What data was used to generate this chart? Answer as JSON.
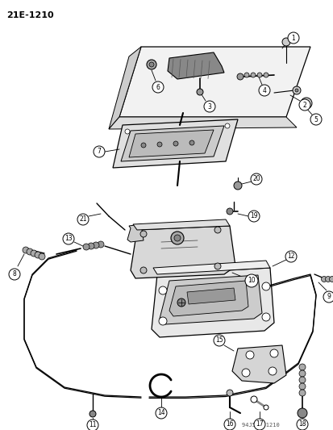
{
  "title": "21E-1210",
  "watermark": "94J53  1210",
  "bg_color": "#ffffff",
  "fg_color": "#000000",
  "fig_width": 4.14,
  "fig_height": 5.33,
  "dpi": 100
}
